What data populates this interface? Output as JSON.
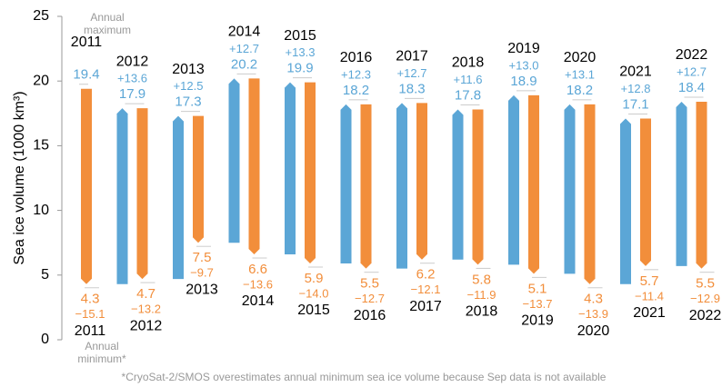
{
  "chart_data": {
    "type": "arrow-range",
    "y_label": "Sea ice volume (1000 km³)",
    "years": [
      "2011",
      "2012",
      "2013",
      "2014",
      "2015",
      "2016",
      "2017",
      "2018",
      "2019",
      "2020",
      "2021",
      "2022"
    ],
    "maximum": {
      "color": "#5ba6d6",
      "values": [
        19.4,
        17.9,
        17.3,
        20.2,
        19.9,
        18.2,
        18.3,
        17.8,
        18.9,
        18.2,
        17.1,
        18.4
      ]
    },
    "minimum": {
      "color": "#f28e3b",
      "values": [
        4.3,
        4.7,
        7.5,
        6.6,
        5.9,
        5.5,
        6.2,
        5.8,
        5.1,
        4.3,
        5.7,
        5.5
      ]
    },
    "freeze": {
      "color": "#5ba6d6",
      "values": [
        null,
        13.6,
        12.5,
        12.7,
        13.3,
        12.3,
        12.7,
        11.6,
        13.0,
        13.1,
        12.8,
        12.7
      ],
      "value_labels": [
        null,
        "+13.6",
        "+12.5",
        "+12.7",
        "+13.3",
        "+12.3",
        "+12.7",
        "+11.6",
        "+13.0",
        "+13.1",
        "+12.8",
        "+12.7"
      ]
    },
    "melt": {
      "color": "#f28e3b",
      "values": [
        -15.1,
        -13.2,
        -9.7,
        -13.6,
        -14.0,
        -12.7,
        -12.1,
        -11.9,
        -13.7,
        -13.9,
        -11.4,
        -12.9
      ],
      "value_labels": [
        "−15.1",
        "−13.2",
        "−9.7",
        "−13.6",
        "−14.0",
        "−12.7",
        "−12.1",
        "−11.9",
        "−13.7",
        "−13.9",
        "−11.4",
        "−12.9"
      ]
    },
    "annotation_max": [
      "Annual",
      "maximum"
    ],
    "annotation_min": [
      "Annual",
      "minimum*"
    ],
    "footnote": "*CryoSat-2/SMOS overestimates annual minimum sea ice volume because Sep data is not available",
    "ylim": [
      0,
      25
    ],
    "yticks": [
      0,
      5,
      10,
      15,
      20,
      25
    ]
  }
}
